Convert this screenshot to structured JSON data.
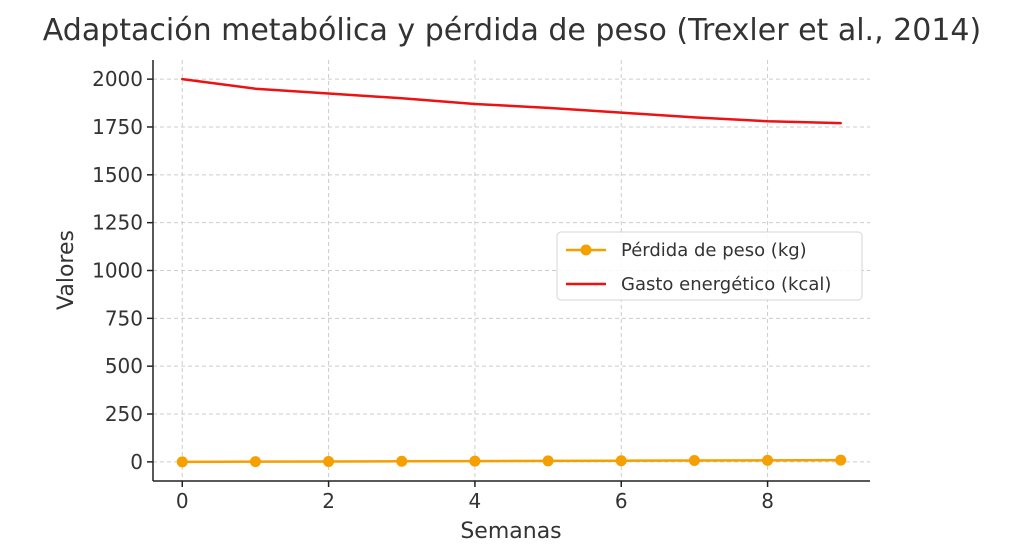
{
  "chart_data": {
    "type": "line",
    "title": "Adaptación metabólica y pérdida de peso (Trexler et al., 2014)",
    "xlabel": "Semanas",
    "ylabel": "Valores",
    "x": [
      0,
      1,
      2,
      3,
      4,
      5,
      6,
      7,
      8,
      9
    ],
    "xlim": [
      -0.4,
      9.4
    ],
    "ylim": [
      -100,
      2100
    ],
    "xticks": [
      0,
      2,
      4,
      6,
      8
    ],
    "yticks": [
      0,
      250,
      500,
      750,
      1000,
      1250,
      1500,
      1750,
      2000
    ],
    "grid": true,
    "legend_position": "center-right",
    "series": [
      {
        "name": "Pérdida de peso (kg)",
        "values": [
          0,
          1,
          2,
          3,
          4,
          5,
          6,
          7,
          8,
          9
        ],
        "color": "#f5a000",
        "marker": "circle"
      },
      {
        "name": "Gasto energético (kcal)",
        "values": [
          2000,
          1950,
          1925,
          1900,
          1870,
          1850,
          1825,
          1800,
          1780,
          1770
        ],
        "color": "#ee1111",
        "marker": "none"
      }
    ]
  }
}
